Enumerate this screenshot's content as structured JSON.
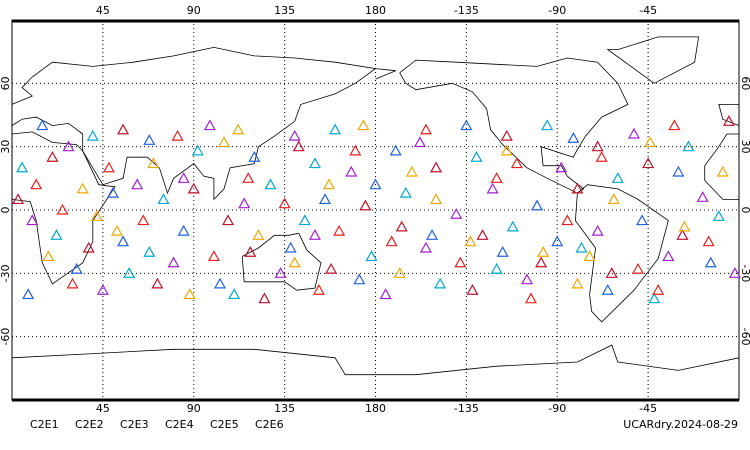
{
  "chart_data": {
    "type": "map",
    "footer": "UCARdry.2024-08-29",
    "xlim": [
      0,
      360
    ],
    "ylim": [
      -90,
      90
    ],
    "xticks": [
      45,
      90,
      135,
      180,
      {
        "value": 225,
        "label": "-135"
      },
      {
        "value": 270,
        "label": "-90"
      },
      {
        "value": 315,
        "label": "-45"
      }
    ],
    "yticks": [
      60,
      30,
      0,
      -30,
      -60
    ],
    "grid": true,
    "series": [
      {
        "name": "C2E1",
        "color": "#00a8d0",
        "points": [
          [
            5,
            20
          ],
          [
            22,
            -12
          ],
          [
            40,
            35
          ],
          [
            58,
            -30
          ],
          [
            75,
            5
          ],
          [
            92,
            28
          ],
          [
            110,
            -40
          ],
          [
            128,
            12
          ],
          [
            145,
            -5
          ],
          [
            160,
            38
          ],
          [
            178,
            -22
          ],
          [
            195,
            8
          ],
          [
            212,
            -35
          ],
          [
            230,
            25
          ],
          [
            248,
            -8
          ],
          [
            265,
            40
          ],
          [
            282,
            -18
          ],
          [
            300,
            15
          ],
          [
            318,
            -42
          ],
          [
            335,
            30
          ],
          [
            350,
            -3
          ],
          [
            68,
            -20
          ],
          [
            150,
            22
          ],
          [
            240,
            -28
          ]
        ]
      },
      {
        "name": "C2E2",
        "color": "#a020d0",
        "points": [
          [
            10,
            -5
          ],
          [
            28,
            30
          ],
          [
            45,
            -38
          ],
          [
            62,
            12
          ],
          [
            80,
            -25
          ],
          [
            98,
            40
          ],
          [
            115,
            3
          ],
          [
            133,
            -30
          ],
          [
            150,
            -12
          ],
          [
            168,
            18
          ],
          [
            185,
            -40
          ],
          [
            202,
            32
          ],
          [
            220,
            -2
          ],
          [
            238,
            10
          ],
          [
            255,
            -33
          ],
          [
            272,
            20
          ],
          [
            290,
            -10
          ],
          [
            308,
            36
          ],
          [
            325,
            -22
          ],
          [
            342,
            6
          ],
          [
            358,
            -30
          ],
          [
            140,
            35
          ],
          [
            205,
            -18
          ],
          [
            85,
            15
          ]
        ]
      },
      {
        "name": "C2E3",
        "color": "#2060e0",
        "points": [
          [
            15,
            40
          ],
          [
            32,
            -28
          ],
          [
            50,
            8
          ],
          [
            68,
            33
          ],
          [
            85,
            -10
          ],
          [
            103,
            -35
          ],
          [
            120,
            25
          ],
          [
            138,
            -18
          ],
          [
            155,
            5
          ],
          [
            172,
            -33
          ],
          [
            190,
            28
          ],
          [
            208,
            -12
          ],
          [
            225,
            40
          ],
          [
            243,
            -20
          ],
          [
            260,
            2
          ],
          [
            278,
            34
          ],
          [
            295,
            -38
          ],
          [
            312,
            -5
          ],
          [
            330,
            18
          ],
          [
            346,
            -25
          ],
          [
            8,
            -40
          ],
          [
            180,
            12
          ],
          [
            270,
            -15
          ],
          [
            55,
            -15
          ]
        ]
      },
      {
        "name": "C2E4",
        "color": "#c0102a",
        "points": [
          [
            3,
            5
          ],
          [
            20,
            25
          ],
          [
            38,
            -18
          ],
          [
            55,
            38
          ],
          [
            72,
            -35
          ],
          [
            90,
            10
          ],
          [
            107,
            -5
          ],
          [
            125,
            -42
          ],
          [
            142,
            30
          ],
          [
            158,
            -28
          ],
          [
            175,
            2
          ],
          [
            193,
            -8
          ],
          [
            210,
            20
          ],
          [
            228,
            -38
          ],
          [
            245,
            35
          ],
          [
            262,
            -25
          ],
          [
            280,
            10
          ],
          [
            297,
            -30
          ],
          [
            315,
            22
          ],
          [
            332,
            -12
          ],
          [
            355,
            42
          ],
          [
            118,
            -20
          ],
          [
            233,
            -12
          ],
          [
            290,
            30
          ]
        ]
      },
      {
        "name": "C2E5",
        "color": "#e82020",
        "points": [
          [
            12,
            12
          ],
          [
            30,
            -35
          ],
          [
            48,
            20
          ],
          [
            65,
            -5
          ],
          [
            82,
            35
          ],
          [
            100,
            -22
          ],
          [
            117,
            15
          ],
          [
            135,
            3
          ],
          [
            152,
            -38
          ],
          [
            170,
            28
          ],
          [
            188,
            -15
          ],
          [
            205,
            38
          ],
          [
            222,
            -25
          ],
          [
            240,
            15
          ],
          [
            257,
            -42
          ],
          [
            275,
            -5
          ],
          [
            292,
            25
          ],
          [
            310,
            -28
          ],
          [
            328,
            40
          ],
          [
            345,
            -15
          ],
          [
            25,
            0
          ],
          [
            162,
            -10
          ],
          [
            250,
            22
          ],
          [
            320,
            -38
          ]
        ]
      },
      {
        "name": "C2E6",
        "color": "#f0a800",
        "points": [
          [
            18,
            -22
          ],
          [
            35,
            10
          ],
          [
            52,
            -10
          ],
          [
            70,
            22
          ],
          [
            88,
            -40
          ],
          [
            105,
            32
          ],
          [
            122,
            -12
          ],
          [
            140,
            -25
          ],
          [
            157,
            12
          ],
          [
            174,
            40
          ],
          [
            192,
            -30
          ],
          [
            210,
            5
          ],
          [
            227,
            -15
          ],
          [
            245,
            28
          ],
          [
            263,
            -20
          ],
          [
            280,
            -35
          ],
          [
            298,
            5
          ],
          [
            316,
            32
          ],
          [
            333,
            -8
          ],
          [
            352,
            18
          ],
          [
            42,
            -3
          ],
          [
            198,
            18
          ],
          [
            286,
            -22
          ],
          [
            112,
            38
          ]
        ]
      }
    ]
  }
}
